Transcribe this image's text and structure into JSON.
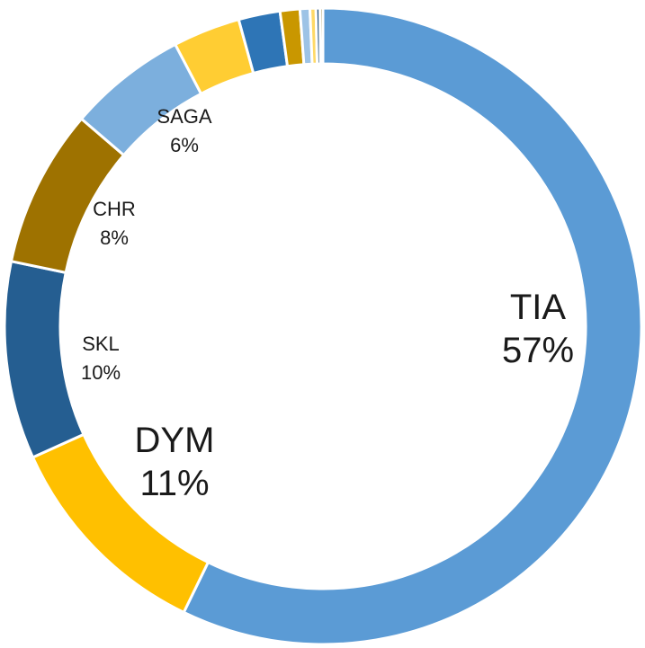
{
  "chart_data": {
    "type": "pie",
    "style": "donut",
    "title": "",
    "legend": "none",
    "start": "12 o'clock, clockwise",
    "slices": [
      {
        "label": "TIA",
        "value": 57,
        "percent_label": "57%",
        "color": "#5B9BD5",
        "labeled": true
      },
      {
        "label": "DYM",
        "value": 11,
        "percent_label": "11%",
        "color": "#FFC000",
        "labeled": true
      },
      {
        "label": "SKL",
        "value": 10,
        "percent_label": "10%",
        "color": "#255E91",
        "labeled": true
      },
      {
        "label": "CHR",
        "value": 8,
        "percent_label": "8%",
        "color": "#9E7200",
        "labeled": true
      },
      {
        "label": "SAGA",
        "value": 6,
        "percent_label": "6%",
        "color": "#7CAFDD",
        "labeled": true
      },
      {
        "label": "",
        "value": 3.4,
        "color": "#FFCD33",
        "labeled": false
      },
      {
        "label": "",
        "value": 2.1,
        "color": "#2E75B6",
        "labeled": false
      },
      {
        "label": "",
        "value": 1.0,
        "color": "#C99700",
        "labeled": false
      },
      {
        "label": "",
        "value": 0.5,
        "color": "#9DC3E6",
        "labeled": false
      },
      {
        "label": "",
        "value": 0.3,
        "color": "#FFD966",
        "labeled": false
      },
      {
        "label": "",
        "value": 0.2,
        "color": "#1F4E79",
        "labeled": false
      },
      {
        "label": "",
        "value": 0.15,
        "color": "#806000",
        "labeled": false
      }
    ]
  }
}
